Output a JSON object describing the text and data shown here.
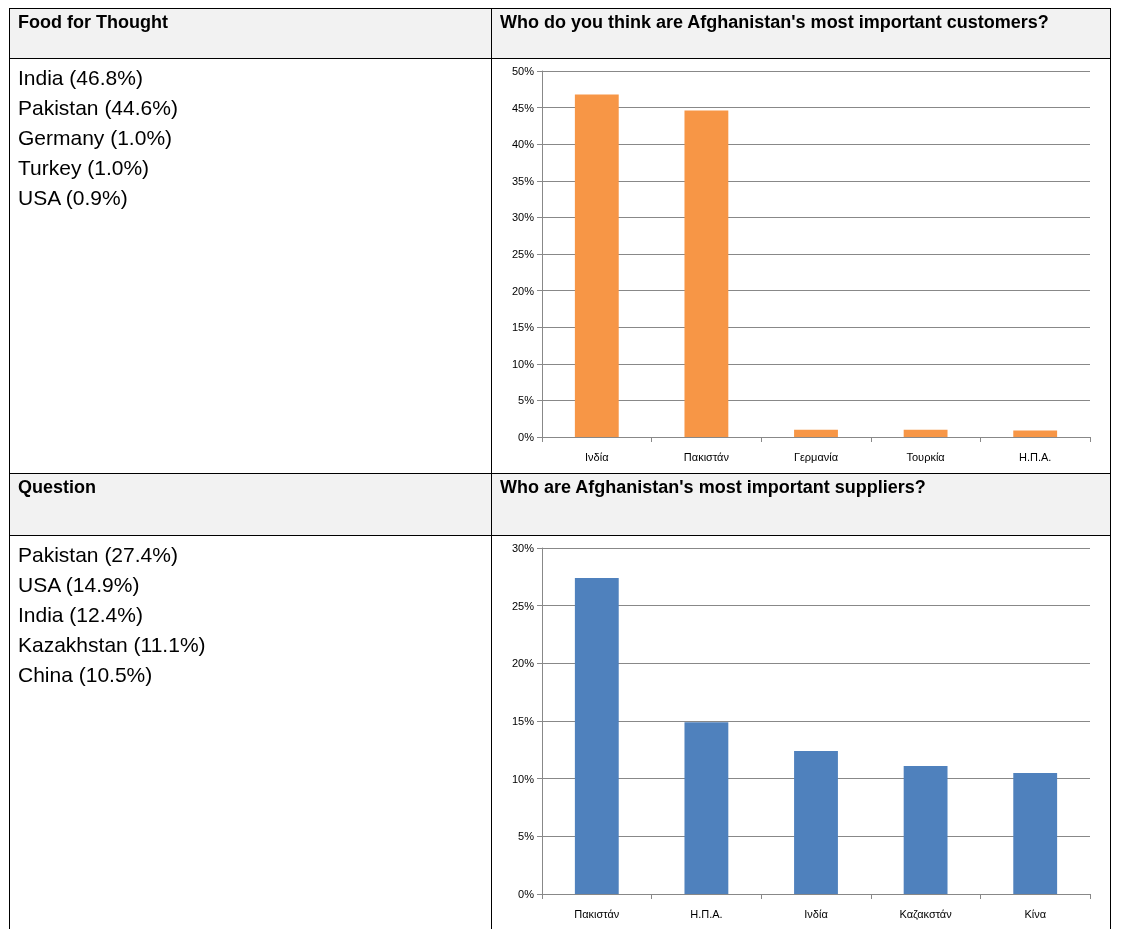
{
  "chart_data": [
    {
      "type": "other",
      "title": "Food for Thought",
      "annotations": [
        "India (46.8%)",
        "Pakistan (44.6%)",
        "Germany (1.0%)",
        "Turkey (1.0%)",
        "USA (0.9%)"
      ]
    },
    {
      "type": "bar",
      "title": "Who do you think are Afghanistan's most important customers?",
      "categories": [
        "Ινδία",
        "Πακιστάν",
        "Γερμανία",
        "Τουρκία",
        "Η.Π.Α."
      ],
      "values": [
        46.8,
        44.6,
        1.0,
        1.0,
        0.9
      ],
      "color": "#f79646",
      "ylim": [
        0,
        50
      ],
      "yticks": [
        {
          "value": 0,
          "label": "0%"
        },
        {
          "value": 5,
          "label": "5%"
        },
        {
          "value": 10,
          "label": "10%"
        },
        {
          "value": 15,
          "label": "15%"
        },
        {
          "value": 20,
          "label": "20%"
        },
        {
          "value": 25,
          "label": "25%"
        },
        {
          "value": 30,
          "label": "30%"
        },
        {
          "value": 35,
          "label": "35%"
        },
        {
          "value": 40,
          "label": "40%"
        },
        {
          "value": 45,
          "label": "45%"
        },
        {
          "value": 50,
          "label": "50%"
        }
      ],
      "grid": "y"
    },
    {
      "type": "other",
      "title": "Question",
      "annotations": [
        "Pakistan (27.4%)",
        "USA (14.9%)",
        "India (12.4%)",
        "Kazakhstan (11.1%)",
        "China (10.5%)"
      ]
    },
    {
      "type": "bar",
      "title": "Who are Afghanistan's most important suppliers?",
      "categories": [
        "Πακιστάν",
        "Η.Π.Α.",
        "Ινδία",
        "Καζακστάν",
        "Κίνα"
      ],
      "values": [
        27.4,
        14.9,
        12.4,
        11.1,
        10.5
      ],
      "color": "#4f81bd",
      "ylim": [
        0,
        30
      ],
      "yticks": [
        {
          "value": 0,
          "label": "0%"
        },
        {
          "value": 5,
          "label": "5%"
        },
        {
          "value": 10,
          "label": "10%"
        },
        {
          "value": 15,
          "label": "15%"
        },
        {
          "value": 20,
          "label": "20%"
        },
        {
          "value": 25,
          "label": "25%"
        },
        {
          "value": 30,
          "label": "30%"
        }
      ],
      "grid": "y"
    }
  ]
}
